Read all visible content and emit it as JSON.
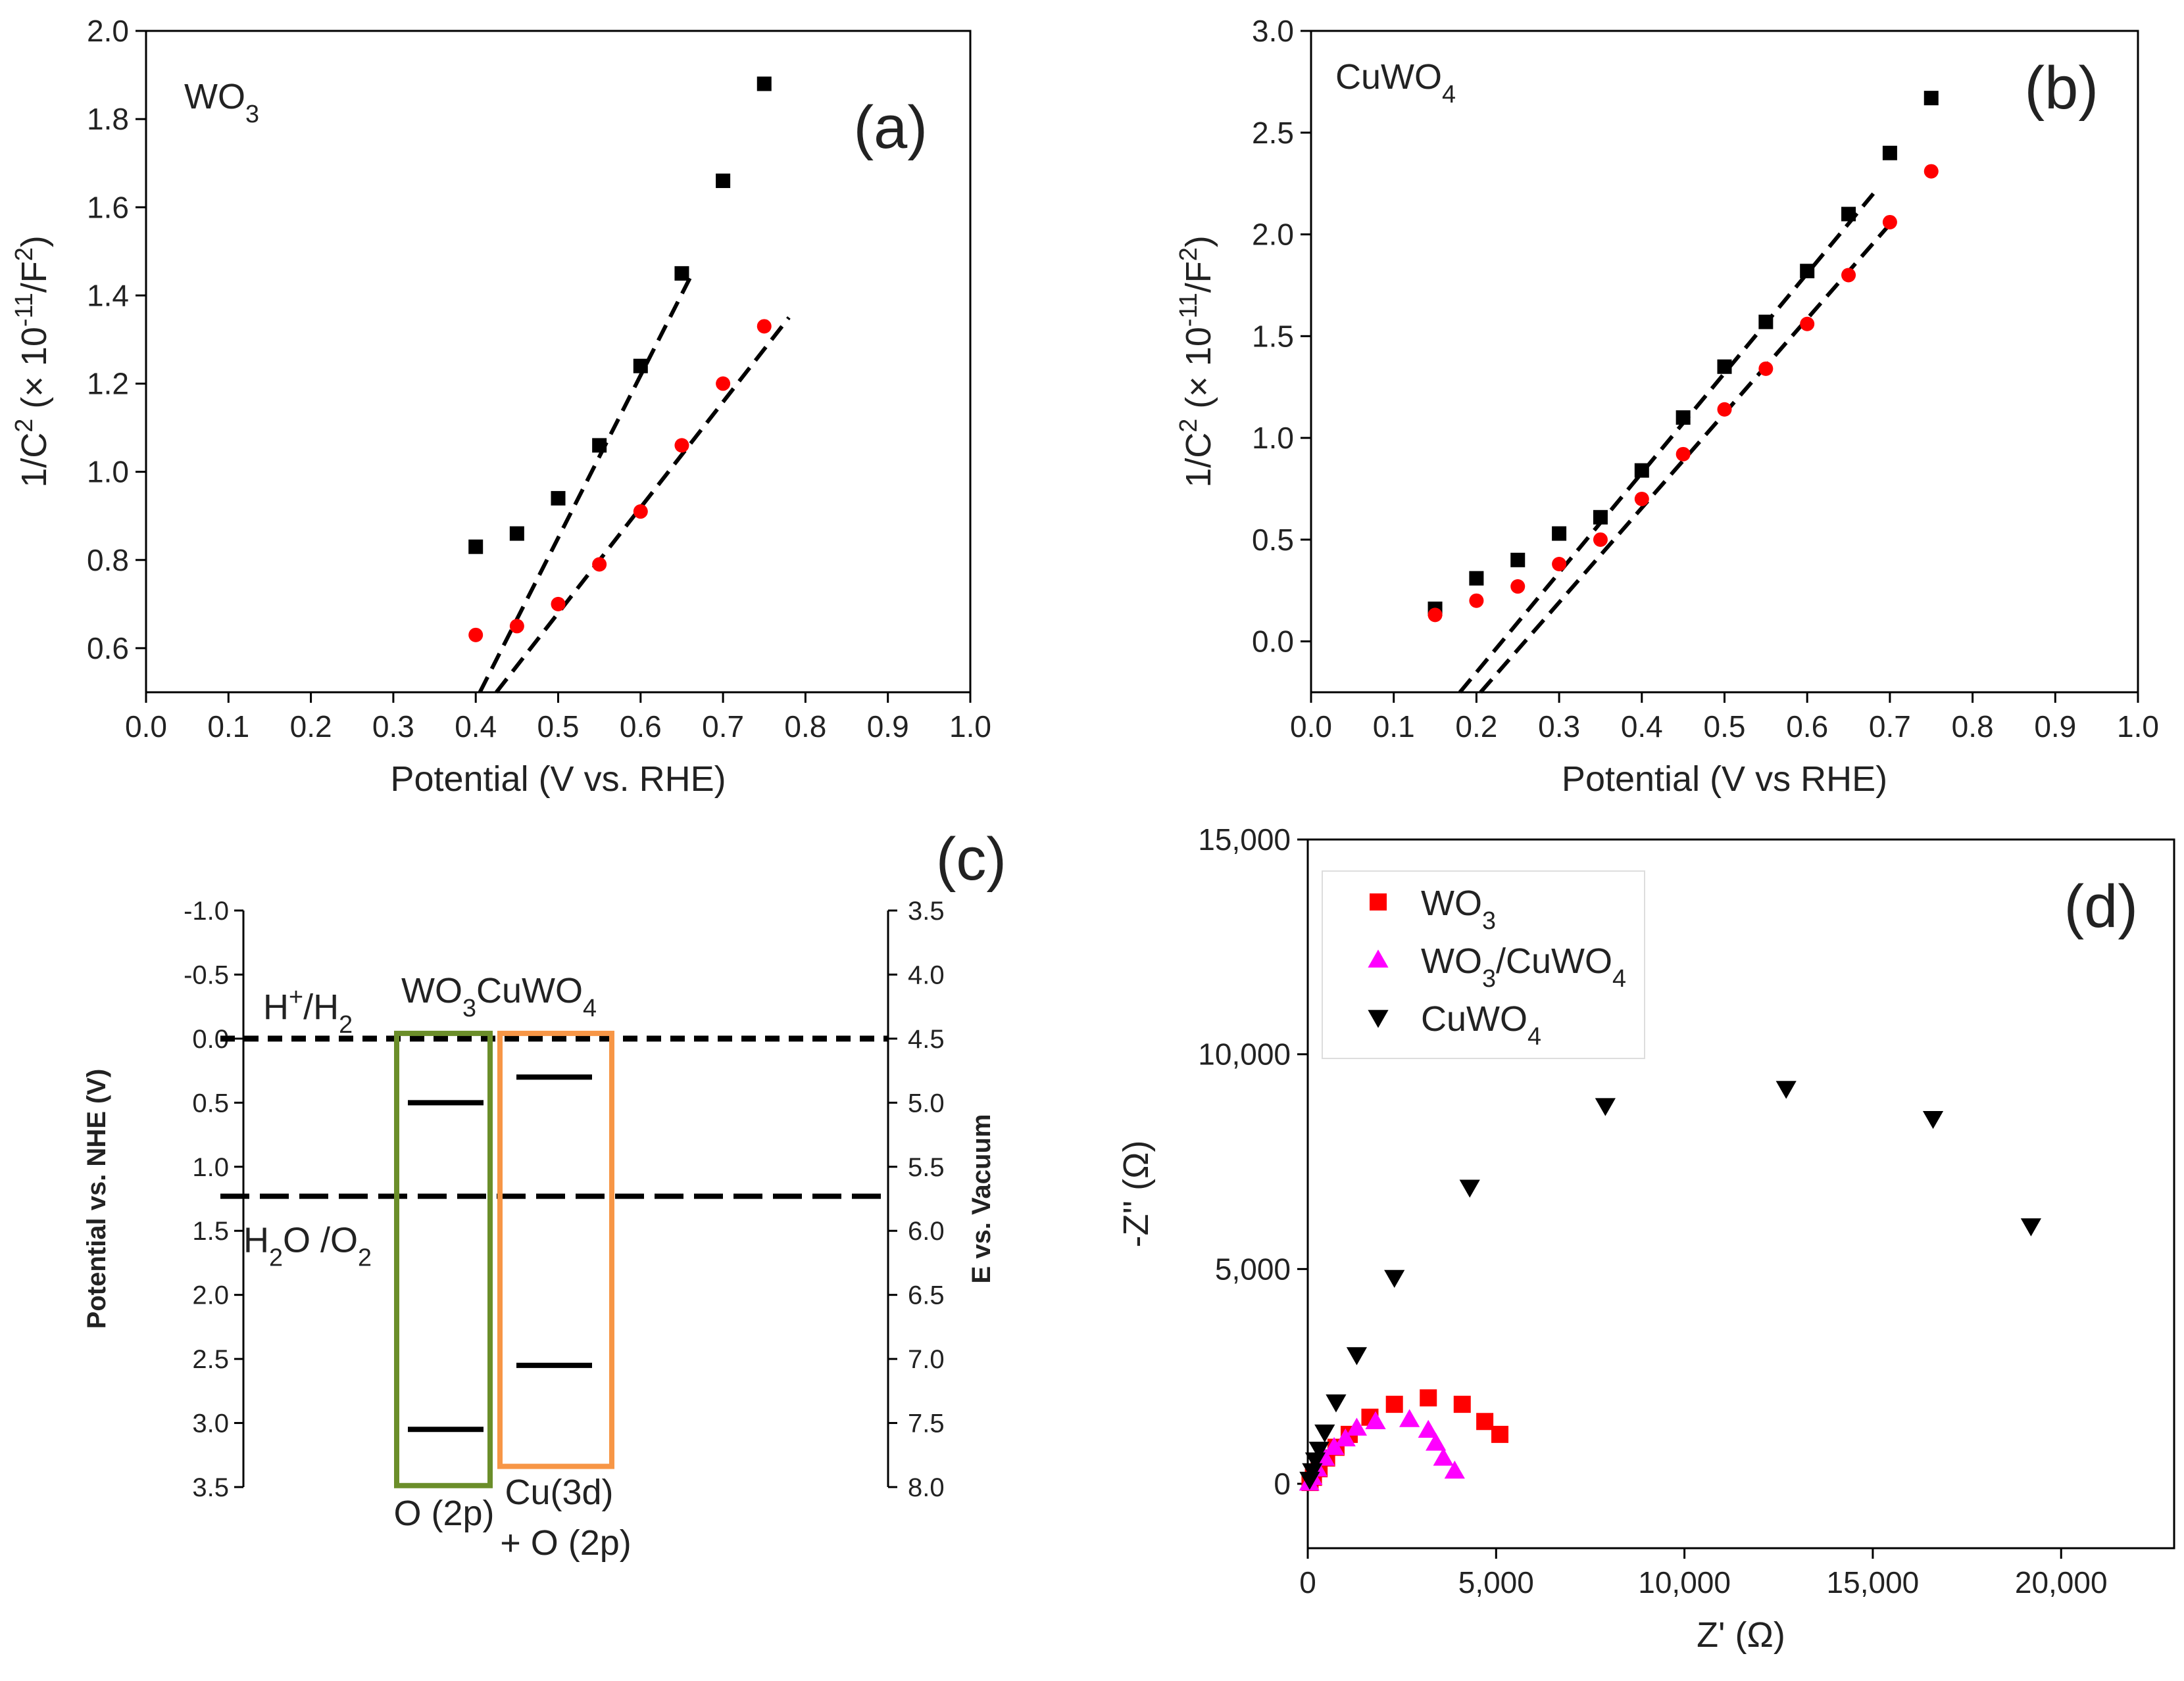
{
  "chart_data": [
    {
      "panel": "(a)",
      "type": "scatter",
      "inset_label": "WO3",
      "xlabel": "Potential (V vs. RHE)",
      "ylabel": "1/C2 (× 10-11/F2)",
      "xlim": [
        0.0,
        1.0
      ],
      "ylim": [
        0.5,
        2.0
      ],
      "xticks": [
        "0.0",
        "0.1",
        "0.2",
        "0.3",
        "0.4",
        "0.5",
        "0.6",
        "0.7",
        "0.8",
        "0.9",
        "1.0"
      ],
      "yticks": [
        "0.6",
        "0.8",
        "1.0",
        "1.2",
        "1.4",
        "1.6",
        "1.8",
        "2.0"
      ],
      "series": [
        {
          "name": "black",
          "marker": "square",
          "color": "#000000",
          "x": [
            0.4,
            0.45,
            0.5,
            0.55,
            0.6,
            0.65,
            0.7,
            0.75
          ],
          "y": [
            0.83,
            0.86,
            0.94,
            1.06,
            1.24,
            1.45,
            1.66,
            1.88
          ]
        },
        {
          "name": "red",
          "marker": "circle",
          "color": "#ff0000",
          "x": [
            0.4,
            0.45,
            0.5,
            0.55,
            0.6,
            0.65,
            0.7,
            0.75
          ],
          "y": [
            0.63,
            0.65,
            0.7,
            0.79,
            0.91,
            1.06,
            1.2,
            1.33
          ]
        }
      ],
      "fits": [
        {
          "x": [
            0.405,
            0.66
          ],
          "y": [
            0.5,
            1.44
          ]
        },
        {
          "x": [
            0.425,
            0.78
          ],
          "y": [
            0.5,
            1.35
          ]
        }
      ]
    },
    {
      "panel": "(b)",
      "type": "scatter",
      "inset_label": "CuWO4",
      "xlabel": "Potential (V vs RHE)",
      "ylabel": "1/C2 (× 10-11/F2)",
      "xlim": [
        0.0,
        1.0
      ],
      "ylim": [
        -0.25,
        3.0
      ],
      "xticks": [
        "0.0",
        "0.1",
        "0.2",
        "0.3",
        "0.4",
        "0.5",
        "0.6",
        "0.7",
        "0.8",
        "0.9",
        "1.0"
      ],
      "yticks": [
        "0.0",
        "0.5",
        "1.0",
        "1.5",
        "2.0",
        "2.5",
        "3.0"
      ],
      "series": [
        {
          "name": "black",
          "marker": "square",
          "color": "#000000",
          "x": [
            0.15,
            0.2,
            0.25,
            0.3,
            0.35,
            0.4,
            0.45,
            0.5,
            0.55,
            0.6,
            0.65,
            0.7,
            0.75
          ],
          "y": [
            0.16,
            0.31,
            0.4,
            0.53,
            0.61,
            0.84,
            1.1,
            1.35,
            1.57,
            1.82,
            2.1,
            2.4,
            2.67
          ]
        },
        {
          "name": "red",
          "marker": "circle",
          "color": "#ff0000",
          "x": [
            0.15,
            0.2,
            0.25,
            0.3,
            0.35,
            0.4,
            0.45,
            0.5,
            0.55,
            0.6,
            0.65,
            0.7,
            0.75
          ],
          "y": [
            0.13,
            0.2,
            0.27,
            0.38,
            0.5,
            0.7,
            0.92,
            1.14,
            1.34,
            1.56,
            1.8,
            2.06,
            2.31
          ]
        }
      ],
      "fits": [
        {
          "x": [
            0.18,
            0.68
          ],
          "y": [
            -0.25,
            2.2
          ]
        },
        {
          "x": [
            0.205,
            0.7
          ],
          "y": [
            -0.25,
            2.05
          ]
        }
      ]
    },
    {
      "panel": "(c)",
      "type": "diagram",
      "ylabel_left": "Potential vs. NHE (V)",
      "ylabel_right": "E vs. Vacuum",
      "left_ticks": [
        "-1.0",
        "-0.5",
        "0.0",
        "0.5",
        "1.0",
        "1.5",
        "2.0",
        "2.5",
        "3.0",
        "3.5"
      ],
      "right_ticks": [
        "3.5",
        "4.0",
        "4.5",
        "5.0",
        "5.5",
        "6.0",
        "6.5",
        "7.0",
        "7.5",
        "8.0"
      ],
      "ylim": [
        -1.0,
        3.5
      ],
      "title": "WO3CuWO4",
      "h_lines": [
        {
          "label": "H+/H2",
          "potential": 0.0
        },
        {
          "label": "H2O /O2",
          "potential": 1.23
        }
      ],
      "boxes": [
        {
          "label": "O (2p)",
          "color": "#6b8e2a",
          "levels": [
            0.5,
            3.05
          ],
          "top": 0.0,
          "bottom": 3.35
        },
        {
          "label_line1": "Cu(3d)",
          "label_line2": "+ O (2p)",
          "color": "#f79646",
          "levels": [
            0.3,
            2.55
          ],
          "top": 0.0,
          "bottom": 3.2
        }
      ]
    },
    {
      "panel": "(d)",
      "type": "scatter",
      "xlabel": "Z' (Ω)",
      "ylabel": "-Z'' (Ω)",
      "xlim": [
        0,
        23000
      ],
      "ylim": [
        -1500,
        15000
      ],
      "xticks": [
        "0",
        "5,000",
        "10,000",
        "15,000",
        "20,000"
      ],
      "yticks": [
        "0",
        "5,000",
        "10,000",
        "15,000"
      ],
      "legend": [
        "WO3",
        "WO3/CuWO4",
        "CuWO4"
      ],
      "series": [
        {
          "name": "WO3",
          "marker": "square",
          "color": "#ff0000",
          "x": [
            60,
            150,
            300,
            500,
            750,
            1100,
            1650,
            2300,
            3200,
            4100,
            4700,
            5100
          ],
          "y": [
            30,
            150,
            350,
            600,
            850,
            1150,
            1550,
            1850,
            2000,
            1850,
            1450,
            1150
          ]
        },
        {
          "name": "WO3/CuWO4",
          "marker": "triangle",
          "color": "#ff00ff",
          "x": [
            40,
            120,
            250,
            450,
            700,
            1000,
            1300,
            1800,
            2700,
            3200,
            3400,
            3600,
            3900
          ],
          "y": [
            20,
            150,
            350,
            600,
            850,
            1050,
            1300,
            1450,
            1500,
            1250,
            950,
            600,
            300
          ]
        },
        {
          "name": "CuWO4",
          "marker": "triangle-down",
          "color": "#000000",
          "x": [
            50,
            120,
            200,
            300,
            450,
            750,
            1300,
            2300,
            4300,
            7900,
            12700,
            16600,
            19200
          ],
          "y": [
            100,
            300,
            550,
            800,
            1200,
            1900,
            3000,
            4800,
            6900,
            8800,
            9200,
            8500,
            6000
          ]
        }
      ]
    }
  ]
}
